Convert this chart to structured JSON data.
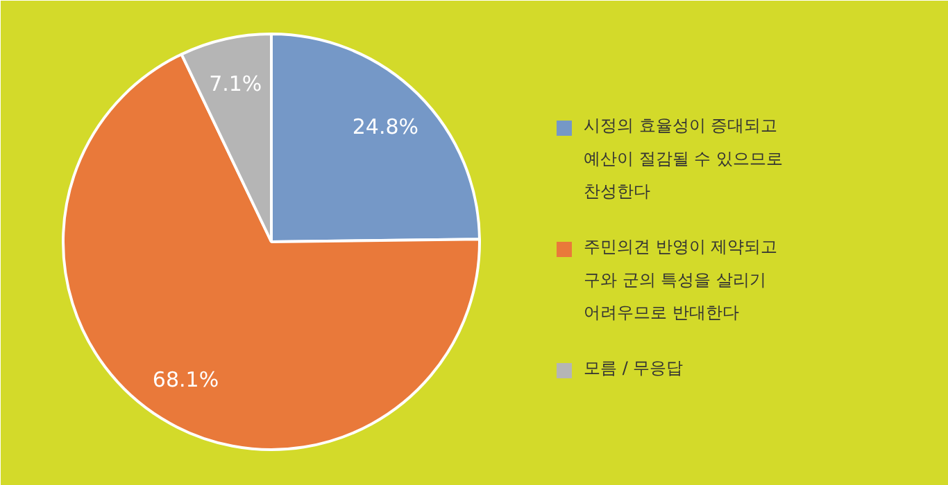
{
  "chart_data": {
    "type": "pie",
    "categories": [
      "시정의 효율성이 증대되고\n예산이 절감될 수 있으므로\n찬성한다",
      "주민의견 반영이 제약되고\n구와 군의 특성을 살리기\n어려우므로 반대한다",
      "모름 / 무응답"
    ],
    "values": [
      24.8,
      68.1,
      7.1
    ],
    "colors": [
      "#7598c7",
      "#e9793a",
      "#b5b5b5"
    ],
    "value_labels": [
      "24.8%",
      "68.1%",
      "7.1%"
    ],
    "legend": "right"
  }
}
